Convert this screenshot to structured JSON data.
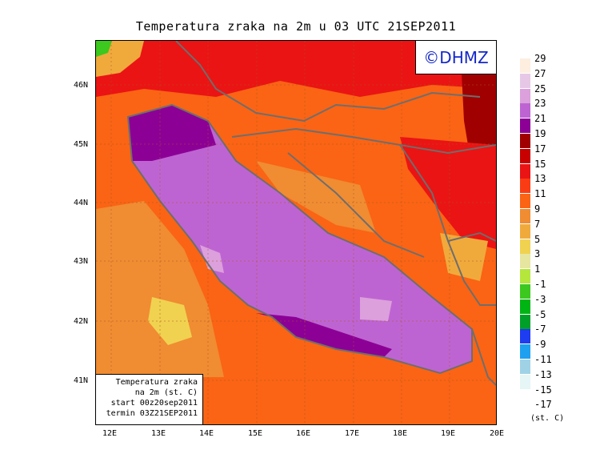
{
  "title": "Temperatura zraka na 2m u 03 UTC 21SEP2011",
  "watermark": "©DHMZ",
  "info_box": {
    "line1": "Temperatura zraka",
    "line2": "na 2m (st. C)",
    "line3": "start 00z20sep2011",
    "line4": "termin 03Z21SEP2011"
  },
  "y_axis_labels": [
    "46N",
    "45N",
    "44N",
    "43N",
    "42N",
    "41N"
  ],
  "x_axis_labels": [
    "12E",
    "13E",
    "14E",
    "15E",
    "16E",
    "17E",
    "18E",
    "19E",
    "20E"
  ],
  "legend": {
    "labels": [
      "29",
      "27",
      "25",
      "23",
      "21",
      "19",
      "17",
      "15",
      "13",
      "11",
      "9",
      "7",
      "5",
      "3",
      "1",
      "-1",
      "-3",
      "-5",
      "-7",
      "-9",
      "-11",
      "-13",
      "-15",
      "-17"
    ],
    "colors": [
      "#fdeee0",
      "#e6c8e6",
      "#dca0dc",
      "#be64d2",
      "#8c0096",
      "#a00000",
      "#c80000",
      "#ea1414",
      "#fa3c14",
      "#fa6414",
      "#f08c32",
      "#f0aa3c",
      "#f0d250",
      "#e6e6a0",
      "#b4e63c",
      "#3cc81e",
      "#00b414",
      "#00a028",
      "#1e3cf0",
      "#1ea0f0",
      "#a0d2e6",
      "#e6f5f5",
      "#ffffff"
    ],
    "units": "(st. C)"
  },
  "palette": {
    "sea": "#be64d2",
    "sea_light": "#dca0dc",
    "coast_dark": "#8c0096",
    "land_mid": "#fa6414",
    "land_warm": "#f08c32",
    "land_red": "#ea1414",
    "border": "#6e6e6e"
  }
}
